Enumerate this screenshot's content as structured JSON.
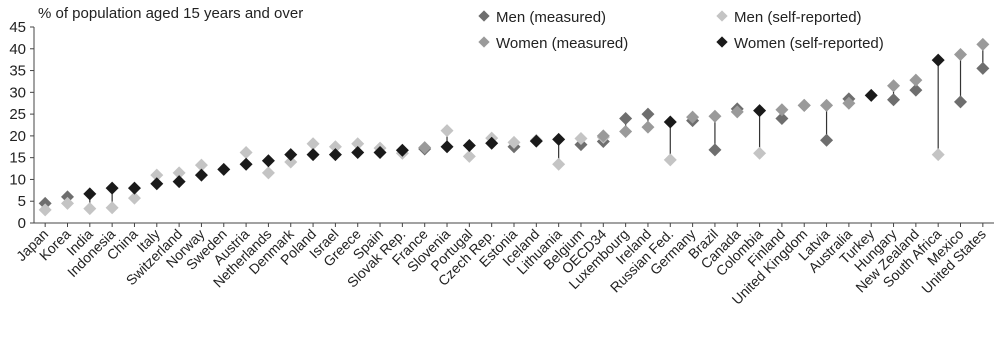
{
  "chart_data": {
    "type": "scatter",
    "title": "% of population aged 15 years and over",
    "ylim": [
      0,
      45
    ],
    "yticks": [
      0,
      5,
      10,
      15,
      20,
      25,
      30,
      35,
      40,
      45
    ],
    "grid": false,
    "legend_position": "top",
    "categories": [
      "Japan",
      "Korea",
      "India",
      "Indonesia",
      "China",
      "Italy",
      "Switzerland",
      "Norway",
      "Sweden",
      "Austria",
      "Netherlands",
      "Denmark",
      "Poland",
      "Israel",
      "Greece",
      "Spain",
      "Slovak Rep.",
      "France",
      "Slovenia",
      "Portugal",
      "Czech Rep.",
      "Estonia",
      "Iceland",
      "Lithuania",
      "Belgium",
      "OECD34",
      "Luxembourg",
      "Ireland",
      "Russian Fed.",
      "Germany",
      "Brazil",
      "Canada",
      "Colombia",
      "Finland",
      "United Kingdom",
      "Latvia",
      "Australia",
      "Turkey",
      "Hungary",
      "New Zealand",
      "South Africa",
      "Mexico",
      "United States"
    ],
    "series": [
      {
        "name": "Men (measured)",
        "color": "#6e6e6e",
        "values": [
          4.5,
          6,
          null,
          null,
          null,
          null,
          null,
          null,
          null,
          null,
          null,
          null,
          null,
          null,
          null,
          null,
          null,
          17,
          null,
          null,
          null,
          17.5,
          null,
          null,
          18,
          18.7,
          24,
          25,
          null,
          23.5,
          16.8,
          26.2,
          null,
          24,
          27,
          19,
          28.5,
          null,
          28.3,
          30.5,
          null,
          27.8,
          35.5
        ]
      },
      {
        "name": "Men (self-reported)",
        "color": "#c4c4c4",
        "values": [
          3,
          4.5,
          3.3,
          3.5,
          5.7,
          11,
          11.5,
          13.3,
          null,
          16.2,
          11.5,
          14,
          18.2,
          17.5,
          18.2,
          17.2,
          16,
          null,
          21.2,
          15.3,
          19.5,
          18.5,
          19,
          13.5,
          19.4,
          19.7,
          null,
          null,
          14.5,
          null,
          null,
          null,
          16,
          null,
          null,
          null,
          null,
          null,
          null,
          null,
          15.7,
          null,
          null
        ]
      },
      {
        "name": "Women (measured)",
        "color": "#9a9a9a",
        "values": [
          null,
          null,
          null,
          null,
          null,
          null,
          null,
          null,
          null,
          null,
          null,
          null,
          null,
          null,
          null,
          null,
          null,
          17.3,
          null,
          null,
          null,
          null,
          null,
          null,
          null,
          20,
          21,
          22,
          null,
          24.3,
          24.5,
          25.5,
          null,
          26,
          27,
          27,
          27.5,
          null,
          31.5,
          32.8,
          null,
          38.7,
          41
        ]
      },
      {
        "name": "Women (self-reported)",
        "color": "#1a1a1a",
        "values": [
          null,
          null,
          6.7,
          8,
          8,
          9,
          9.5,
          11,
          12.3,
          13.5,
          14.3,
          15.7,
          15.7,
          15.7,
          16.2,
          16.2,
          16.7,
          null,
          17.5,
          17.8,
          18.3,
          null,
          18.8,
          19.2,
          null,
          null,
          null,
          null,
          23.2,
          null,
          null,
          null,
          25.8,
          null,
          null,
          null,
          null,
          29.3,
          null,
          null,
          37.4,
          null,
          null
        ]
      }
    ]
  }
}
